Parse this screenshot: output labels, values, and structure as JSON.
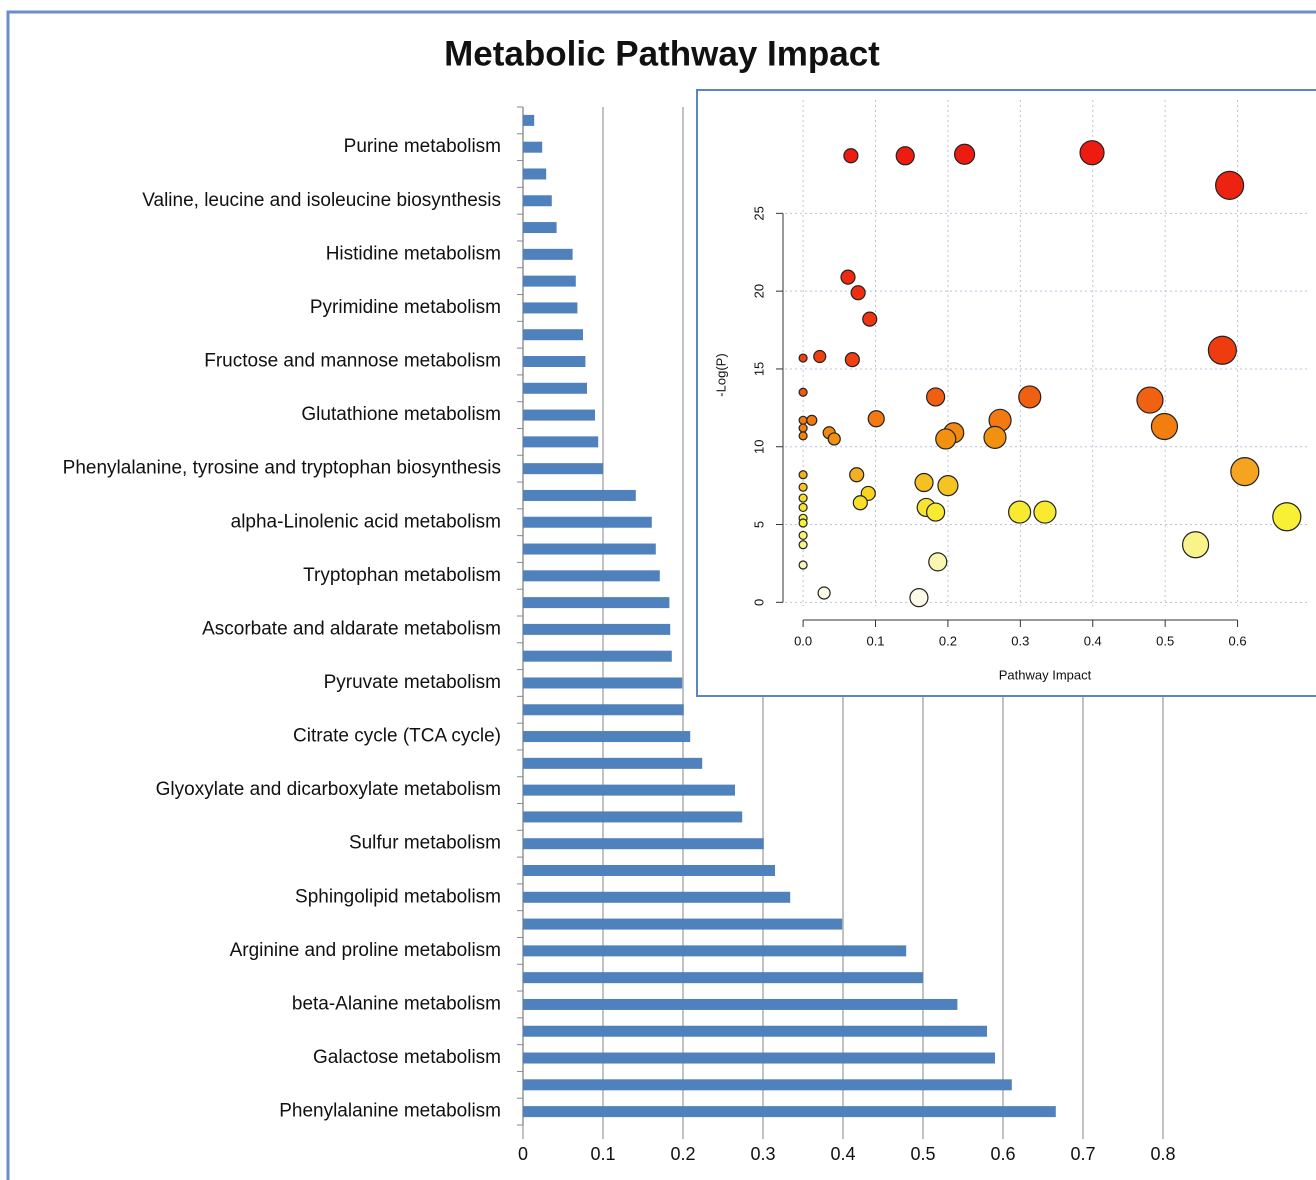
{
  "chart_data": [
    {
      "type": "barh",
      "title": "Metabolic Pathway Impact",
      "categories": [
        null,
        "Purine metabolism",
        null,
        "Valine, leucine and isoleucine biosynthesis",
        null,
        "Histidine metabolism",
        null,
        "Pyrimidine metabolism",
        null,
        "Fructose and mannose metabolism",
        null,
        "Glutathione metabolism",
        null,
        "Phenylalanine, tyrosine and tryptophan biosynthesis",
        null,
        "alpha-Linolenic acid metabolism",
        null,
        "Tryptophan metabolism",
        null,
        "Ascorbate and aldarate metabolism",
        null,
        "Pyruvate metabolism",
        null,
        "Citrate cycle (TCA cycle)",
        null,
        "Glyoxylate and dicarboxylate metabolism",
        null,
        "Sulfur metabolism",
        null,
        "Sphingolipid metabolism",
        null,
        "Arginine and proline metabolism",
        null,
        "beta-Alanine metabolism",
        null,
        "Galactose metabolism",
        null,
        "Phenylalanine metabolism"
      ],
      "values": [
        0.014,
        0.024,
        0.029,
        0.036,
        0.042,
        0.062,
        0.066,
        0.068,
        0.075,
        0.078,
        0.08,
        0.09,
        0.094,
        0.1,
        0.141,
        0.161,
        0.166,
        0.171,
        0.183,
        0.184,
        0.186,
        0.199,
        0.201,
        0.209,
        0.224,
        0.265,
        0.274,
        0.301,
        0.315,
        0.334,
        0.399,
        0.479,
        0.5,
        0.543,
        0.58,
        0.59,
        0.611,
        0.666
      ],
      "color": "#4f81bd",
      "xlim": [
        0,
        0.8
      ],
      "xticks": [
        0,
        0.1,
        0.2,
        0.3,
        0.4,
        0.5,
        0.6,
        0.7,
        0.8
      ],
      "grid": true
    },
    {
      "type": "scatter",
      "xlabel": "Pathway Impact",
      "ylabel": "-Log(P)",
      "x": [
        0.066,
        0.141,
        0.223,
        0.399,
        0.589,
        0.062,
        0.076,
        0.092,
        0,
        0.023,
        0.068,
        0.579,
        0,
        0.183,
        0.313,
        0.479,
        0,
        0.012,
        0,
        0,
        0.101,
        0.272,
        0.499,
        0.036,
        0.043,
        0.208,
        0.197,
        0.265,
        0.61,
        0,
        0.074,
        0.167,
        0.2,
        0,
        0.09,
        0.079,
        0,
        0,
        0.17,
        0.183,
        0.299,
        0.334,
        0.668,
        0,
        0,
        0,
        0,
        0.542,
        0.186,
        0,
        0.029,
        0.16
      ],
      "y": [
        28.7,
        28.7,
        28.8,
        28.9,
        26.8,
        20.9,
        19.9,
        18.2,
        15.7,
        15.8,
        15.6,
        16.2,
        13.5,
        13.2,
        13.2,
        13.0,
        11.7,
        11.7,
        11.2,
        10.7,
        11.8,
        11.7,
        11.3,
        10.9,
        10.5,
        10.9,
        10.5,
        10.6,
        8.4,
        8.2,
        8.2,
        7.7,
        7.5,
        7.4,
        7.0,
        6.4,
        6.7,
        6.1,
        6.1,
        5.8,
        5.8,
        5.8,
        5.5,
        5.4,
        5.1,
        4.3,
        3.7,
        3.7,
        2.6,
        2.4,
        0.6,
        0.3
      ],
      "sizes": [
        7,
        9,
        10,
        12,
        14,
        7,
        7,
        7,
        4,
        6,
        7,
        14,
        4,
        9,
        11,
        13,
        4,
        5,
        4,
        4,
        8,
        11,
        13,
        6,
        6,
        10,
        10,
        11,
        14,
        4,
        7,
        9,
        10,
        4,
        7,
        7,
        4,
        4,
        9,
        9,
        11,
        11,
        14,
        4,
        4,
        4,
        4,
        13,
        9,
        4,
        6,
        9
      ],
      "colors": [
        "#ee1c10",
        "#ee1c10",
        "#ee1c10",
        "#ee1c10",
        "#ee2210",
        "#ee2a10",
        "#ee2e10",
        "#ee3510",
        "#ee4010",
        "#ee4010",
        "#ee4010",
        "#ee3c10",
        "#f05a10",
        "#f06010",
        "#f06010",
        "#f06212",
        "#f27a10",
        "#f27a10",
        "#f27e10",
        "#f28410",
        "#f27a10",
        "#f27a10",
        "#f27e10",
        "#f28a10",
        "#f29010",
        "#f28a10",
        "#f29010",
        "#f29010",
        "#f4a420",
        "#f4b020",
        "#f4b020",
        "#f6c020",
        "#f6c420",
        "#f6c420",
        "#f8d420",
        "#f8e02a",
        "#f8dc2a",
        "#f8e430",
        "#f8e430",
        "#f8ea30",
        "#f8ea30",
        "#f8ea30",
        "#f8f034",
        "#f8f034",
        "#f8f238",
        "#f8f470",
        "#f8f48a",
        "#f8f48a",
        "#f8f6b0",
        "#f8f6b8",
        "#fbfbe6",
        "#fbfbe8"
      ],
      "xlim": [
        -0.025,
        0.7
      ],
      "xticks": [
        {
          "value": 0,
          "label": "0.0"
        },
        0.1,
        0.2,
        0.3,
        0.4,
        0.5,
        0.6
      ],
      "ylim": [
        -1.2,
        31
      ],
      "yticks": [
        0,
        5,
        10,
        15,
        20,
        25
      ],
      "grid": true
    }
  ]
}
